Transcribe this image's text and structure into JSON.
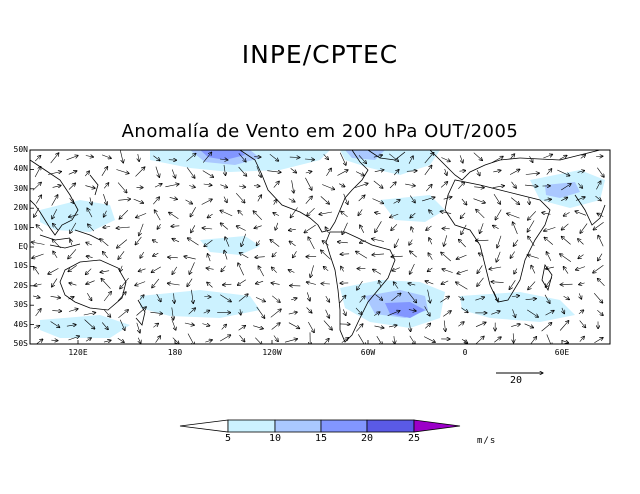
{
  "header": {
    "title": "INPE/CPTEC"
  },
  "map": {
    "title": "Anomalía de Vento em 200 hPa OUT/2005",
    "lat_labels": [
      "50N",
      "40N",
      "30N",
      "20N",
      "10N",
      "EQ",
      "10S",
      "20S",
      "30S",
      "40S",
      "50S"
    ],
    "lon_labels": [
      "120E",
      "180",
      "120W",
      "60W",
      "0",
      "60E"
    ],
    "reference_vector": {
      "label": "20"
    },
    "colors": {
      "ocean": "#ffffff",
      "shade_5_10": "#ccf2ff",
      "shade_10_15": "#aac8ff",
      "shade_15_20": "#8296ff",
      "shade_20_25": "#5a5ae6",
      "shade_above_25": "#9b00c8",
      "coastline": "#000000"
    }
  },
  "colorbar": {
    "labels": [
      "5",
      "10",
      "15",
      "20",
      "25"
    ],
    "unit": "m/s"
  }
}
